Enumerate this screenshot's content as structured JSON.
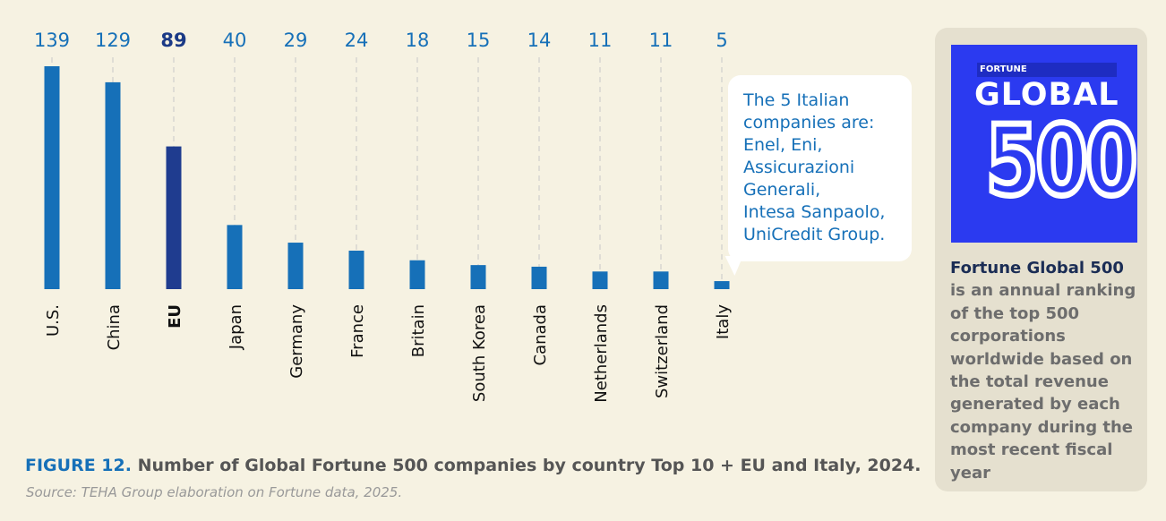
{
  "chart_data": {
    "type": "bar",
    "categories": [
      "U.S.",
      "China",
      "EU",
      "Japan",
      "Germany",
      "France",
      "Britain",
      "South Korea",
      "Canada",
      "Netherlands",
      "Switzerland",
      "Italy"
    ],
    "values": [
      139,
      129,
      89,
      40,
      29,
      24,
      18,
      15,
      14,
      11,
      11,
      5
    ],
    "highlight": "EU",
    "title": "Number of Global Fortune 500 companies by country Top 10 + EU and Italy, 2024.",
    "xlabel": "",
    "ylabel": "",
    "ylim": [
      0,
      139
    ],
    "grid": false,
    "legend": "none",
    "colors": {
      "bar": "#1670b8",
      "highlight": "#1f3c8f",
      "value_label": "#1670b8",
      "highlight_label": "#1b3a86",
      "guide": "#c8c8c8"
    }
  },
  "figure_label": "FIGURE 12.",
  "caption": "Number of Global Fortune 500 companies by country Top 10 + EU and Italy, 2024.",
  "source": "Source: TEHA Group elaboration on Fortune data, 2025.",
  "callout": {
    "text": "The 5 Italian\ncompanies are:\nEnel, Eni,\nAssicurazioni\nGenerali,\nIntesa Sanpaolo,\nUniCredit Group."
  },
  "sidebar": {
    "logo_fortune": "FORTUNE",
    "logo_global": "GLOBAL",
    "logo_500": "500",
    "title": "Fortune Global 500",
    "description": "is an annual ranking of the top 500 corporations worldwide based on the total revenue generated by each company during the most recent fiscal year",
    "colors": {
      "logo_bg": "#2b3af0",
      "panel_bg": "#e5e0cf"
    }
  }
}
